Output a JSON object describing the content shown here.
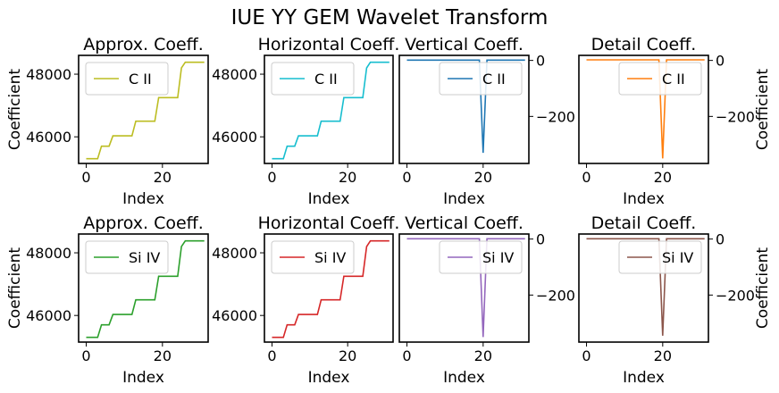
{
  "suptitle": "IUE YY GEM Wavelet Transform",
  "chart_data": [
    {
      "type": "line",
      "title": "Approx. Coeff.",
      "xlabel": "Index",
      "ylabel": "Coefficient",
      "ylabel_side": "left",
      "yticks_side": "left",
      "xlim": [
        -2,
        32
      ],
      "ylim": [
        45150,
        48600
      ],
      "xticks": [
        0,
        20
      ],
      "yticks": [
        46000,
        48000
      ],
      "series": [
        {
          "name": "C II",
          "color": "#bcbd22",
          "x": [
            0,
            3,
            4,
            6,
            7,
            12,
            13,
            18,
            19,
            23,
            24,
            25,
            26,
            31
          ],
          "y": [
            45300,
            45300,
            45700,
            45700,
            46030,
            46030,
            46500,
            46500,
            47250,
            47250,
            47250,
            48200,
            48380,
            48380
          ]
        }
      ]
    },
    {
      "type": "line",
      "title": "Horizontal Coeff.",
      "xlabel": "Index",
      "ylabel": "",
      "ylabel_side": "left",
      "yticks_side": "left",
      "xlim": [
        -2,
        32
      ],
      "ylim": [
        45150,
        48600
      ],
      "xticks": [
        0,
        20
      ],
      "yticks": [
        46000,
        48000
      ],
      "series": [
        {
          "name": "C II",
          "color": "#17becf",
          "x": [
            0,
            3,
            4,
            6,
            7,
            12,
            13,
            18,
            19,
            23,
            24,
            25,
            26,
            31
          ],
          "y": [
            45300,
            45300,
            45700,
            45700,
            46030,
            46030,
            46500,
            46500,
            47250,
            47250,
            47250,
            48200,
            48380,
            48380
          ]
        }
      ]
    },
    {
      "type": "line",
      "title": "Vertical Coeff.",
      "xlabel": "Index",
      "ylabel": "",
      "ylabel_side": "right",
      "yticks_side": "right",
      "xlim": [
        -2,
        32
      ],
      "ylim": [
        -368,
        18
      ],
      "xticks": [
        0,
        20
      ],
      "yticks": [
        -200,
        0
      ],
      "series": [
        {
          "name": "C II",
          "color": "#1f77b4",
          "x": [
            0,
            19,
            20,
            21,
            31
          ],
          "y": [
            1,
            1,
            -330,
            1,
            1
          ]
        }
      ]
    },
    {
      "type": "line",
      "title": "Detail Coeff.",
      "xlabel": "Index",
      "ylabel": "Coefficient",
      "ylabel_side": "right",
      "yticks_side": "right",
      "xlim": [
        -2,
        32
      ],
      "ylim": [
        -368,
        18
      ],
      "xticks": [
        0,
        20
      ],
      "yticks": [
        -200,
        0
      ],
      "series": [
        {
          "name": "C II",
          "color": "#ff7f0e",
          "x": [
            0,
            19,
            20,
            21,
            31
          ],
          "y": [
            2,
            2,
            -350,
            2,
            2
          ]
        }
      ]
    },
    {
      "type": "line",
      "title": "Approx. Coeff.",
      "xlabel": "Index",
      "ylabel": "Coefficient",
      "ylabel_side": "left",
      "yticks_side": "left",
      "xlim": [
        -2,
        32
      ],
      "ylim": [
        45150,
        48600
      ],
      "xticks": [
        0,
        20
      ],
      "yticks": [
        46000,
        48000
      ],
      "series": [
        {
          "name": "Si IV",
          "color": "#2ca02c",
          "x": [
            0,
            3,
            4,
            6,
            7,
            12,
            13,
            18,
            19,
            23,
            24,
            25,
            26,
            31
          ],
          "y": [
            45300,
            45300,
            45700,
            45700,
            46030,
            46030,
            46500,
            46500,
            47250,
            47250,
            47250,
            48200,
            48380,
            48380
          ]
        }
      ]
    },
    {
      "type": "line",
      "title": "Horizontal Coeff.",
      "xlabel": "Index",
      "ylabel": "",
      "ylabel_side": "left",
      "yticks_side": "left",
      "xlim": [
        -2,
        32
      ],
      "ylim": [
        45150,
        48600
      ],
      "xticks": [
        0,
        20
      ],
      "yticks": [
        46000,
        48000
      ],
      "series": [
        {
          "name": "Si IV",
          "color": "#d62728",
          "x": [
            0,
            3,
            4,
            6,
            7,
            12,
            13,
            18,
            19,
            23,
            24,
            25,
            26,
            31
          ],
          "y": [
            45300,
            45300,
            45700,
            45700,
            46030,
            46030,
            46500,
            46500,
            47250,
            47250,
            47250,
            48200,
            48380,
            48380
          ]
        }
      ]
    },
    {
      "type": "line",
      "title": "Vertical Coeff.",
      "xlabel": "Index",
      "ylabel": "",
      "ylabel_side": "right",
      "yticks_side": "right",
      "xlim": [
        -2,
        32
      ],
      "ylim": [
        -368,
        18
      ],
      "xticks": [
        0,
        20
      ],
      "yticks": [
        -200,
        0
      ],
      "series": [
        {
          "name": "Si IV",
          "color": "#9467bd",
          "x": [
            0,
            19,
            20,
            21,
            31
          ],
          "y": [
            1,
            1,
            -350,
            1,
            1
          ]
        }
      ]
    },
    {
      "type": "line",
      "title": "Detail Coeff.",
      "xlabel": "Index",
      "ylabel": "Coefficient",
      "ylabel_side": "right",
      "yticks_side": "right",
      "xlim": [
        -2,
        32
      ],
      "ylim": [
        -368,
        18
      ],
      "xticks": [
        0,
        20
      ],
      "yticks": [
        -200,
        0
      ],
      "series": [
        {
          "name": "Si IV",
          "color": "#8c564b",
          "x": [
            0,
            19,
            20,
            21,
            31
          ],
          "y": [
            1,
            1,
            -345,
            1,
            1
          ]
        }
      ]
    }
  ]
}
